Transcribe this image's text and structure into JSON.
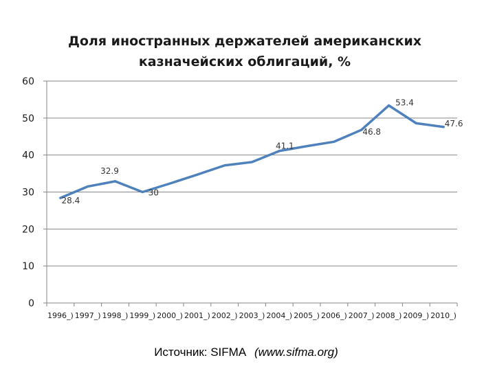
{
  "chart_data": {
    "type": "line",
    "title_line1": "Доля иностранных держателей американских",
    "title_line2": "казначейских облигаций, %",
    "categories": [
      "1996_)",
      "1997_)",
      "1998_)",
      "1999_)",
      "2000_)",
      "2001_)",
      "2002_)",
      "2003_)",
      "2004_)",
      "2005_)",
      "2006_)",
      "2007_)",
      "2008_)",
      "2009_)",
      "2010_)"
    ],
    "series": [
      {
        "name": "Доля иностранных держателей",
        "values": [
          28.4,
          31.5,
          32.9,
          30.0,
          32.3,
          34.7,
          37.2,
          38.1,
          41.1,
          42.4,
          43.6,
          46.8,
          53.4,
          48.6,
          47.6
        ],
        "color": "#4f81bd"
      }
    ],
    "data_labels": [
      {
        "index": 0,
        "text": "28.4"
      },
      {
        "index": 2,
        "text": "32.9"
      },
      {
        "index": 3,
        "text": "30"
      },
      {
        "index": 8,
        "text": "41.1"
      },
      {
        "index": 11,
        "text": "46.8"
      },
      {
        "index": 12,
        "text": "53.4"
      },
      {
        "index": 14,
        "text": "47.6"
      }
    ],
    "yticks": [
      "0",
      "10",
      "20",
      "30",
      "40",
      "50",
      "60"
    ],
    "ylim": [
      0,
      60
    ],
    "grid": true,
    "gridline_color": "#868686",
    "xlabel": "",
    "ylabel": ""
  },
  "source": {
    "prefix": "Источник: SIFMA",
    "url": "(www.sifma.org)"
  }
}
